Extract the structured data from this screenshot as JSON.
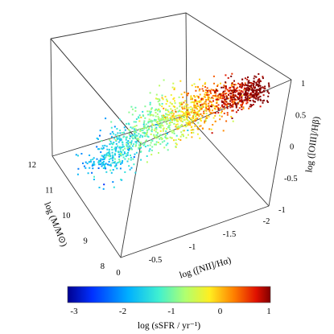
{
  "chart_data": {
    "type": "scatter",
    "projection": "3d",
    "axes": {
      "x": {
        "label": "log ([NII]/Hα)",
        "range": [
          0,
          -2
        ],
        "ticks": [
          "0",
          "-0.5",
          "-1",
          "-1.5",
          "-2"
        ]
      },
      "y": {
        "label": "log (M/M⊙)",
        "range": [
          8,
          12
        ],
        "ticks": [
          "8",
          "9",
          "10",
          "11",
          "12"
        ]
      },
      "z": {
        "label": "log ([OIII]/Hβ)",
        "range": [
          -1,
          1
        ],
        "ticks": [
          "-1",
          "-0.5",
          "0",
          "0.5",
          "1"
        ]
      }
    },
    "color_scale": {
      "label": "log (sSFR / yr⁻¹)",
      "range": [
        -3,
        1
      ],
      "ticks": [
        "-3",
        "-2",
        "-1",
        "0",
        "1"
      ],
      "colors": [
        "#00008f",
        "#0040ff",
        "#00c0ff",
        "#80ffb0",
        "#ffff40",
        "#ff8000",
        "#d00000",
        "#7f0000"
      ]
    },
    "series": [
      {
        "points_summary": "main sequence cloud (~1500 galaxies)",
        "sample": [
          {
            "nii_ha": -0.4,
            "mass": 9.0,
            "oiii_hb": 0.6,
            "ssfr": -1.0
          },
          {
            "nii_ha": -0.45,
            "mass": 9.5,
            "oiii_hb": 0.45,
            "ssfr": -0.8
          },
          {
            "nii_ha": -0.55,
            "mass": 10.0,
            "oiii_hb": 0.3,
            "ssfr": -1.1
          },
          {
            "nii_ha": -0.7,
            "mass": 10.5,
            "oiii_hb": 0.1,
            "ssfr": -1.5
          },
          {
            "nii_ha": -0.85,
            "mass": 11.0,
            "oiii_hb": -0.1,
            "ssfr": -1.8
          },
          {
            "nii_ha": -0.3,
            "mass": 8.5,
            "oiii_hb": 0.75,
            "ssfr": 0.3
          },
          {
            "nii_ha": -0.2,
            "mass": 8.2,
            "oiii_hb": 0.85,
            "ssfr": 0.7
          }
        ]
      }
    ],
    "grid": false,
    "legend": "colorbar-bottom"
  }
}
